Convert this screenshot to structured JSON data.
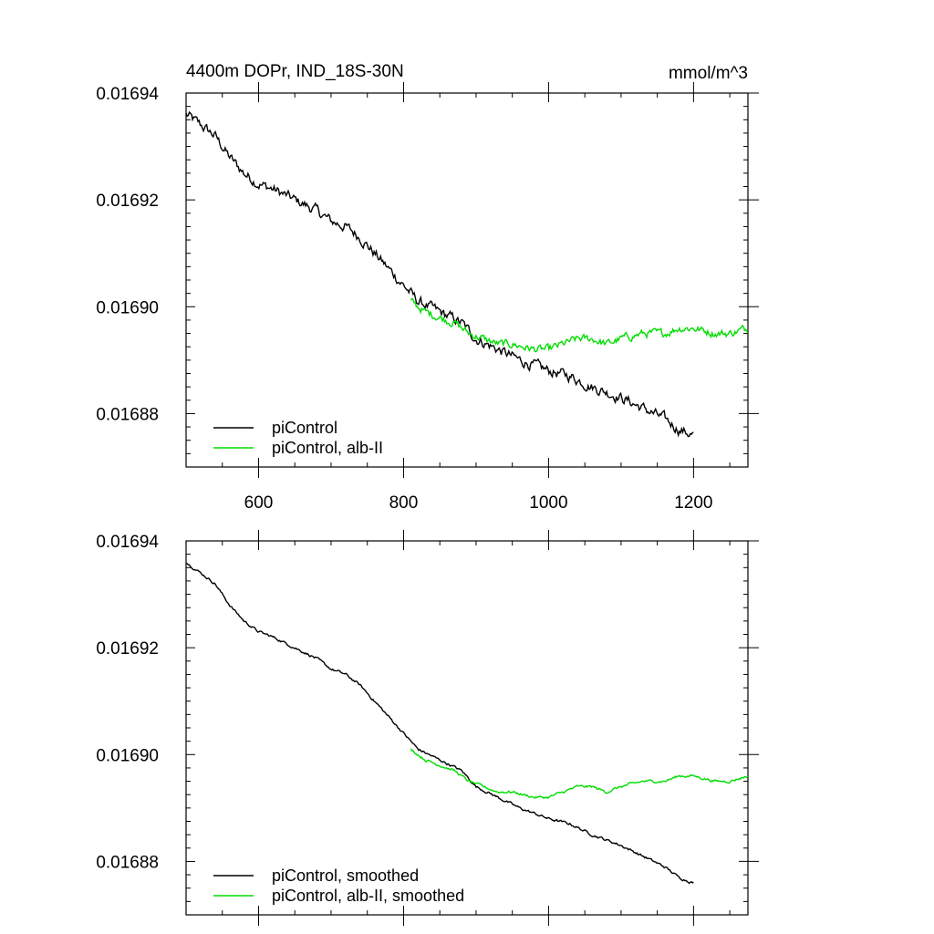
{
  "page": {
    "title": "4400m DOPr, IND_18S-30N",
    "units": "mmol/m^3"
  },
  "colors": {
    "piControl": "#000000",
    "alb": "#00dd00"
  },
  "chart_data": [
    {
      "type": "line",
      "title": "4400m DOPr, IND_18S-30N",
      "units_label": "mmol/m^3",
      "xlabel": "",
      "ylabel": "",
      "xlim": [
        500,
        1275
      ],
      "ylim": [
        0.01687,
        0.01694
      ],
      "xticks": [
        600,
        800,
        1000,
        1200
      ],
      "xtick_labels": [
        "600",
        "800",
        "1000",
        "1200"
      ],
      "yticks": [
        0.01688,
        0.0169,
        0.01692,
        0.01694
      ],
      "ytick_labels": [
        "0.01688",
        "0.01690",
        "0.01692",
        "0.01694"
      ],
      "legend_position": "bottom-left",
      "series": [
        {
          "name": "piControl",
          "color": "#000000",
          "noise": 8e-07,
          "x": [
            500,
            520,
            540,
            560,
            580,
            600,
            620,
            650,
            680,
            700,
            720,
            740,
            760,
            780,
            800,
            820,
            850,
            880,
            900,
            930,
            960,
            1000,
            1030,
            1060,
            1100,
            1130,
            1160,
            1180,
            1200
          ],
          "y": [
            0.016936,
            0.016934,
            0.016932,
            0.016928,
            0.016925,
            0.016923,
            0.016922,
            0.01692,
            0.016918,
            0.016916,
            0.016915,
            0.016913,
            0.01691,
            0.016907,
            0.016904,
            0.016901,
            0.016899,
            0.016897,
            0.016894,
            0.016892,
            0.01689,
            0.016888,
            0.016887,
            0.016885,
            0.016883,
            0.016881,
            0.016879,
            0.016877,
            0.016876
          ]
        },
        {
          "name": "piControl, alb-II",
          "color": "#00dd00",
          "noise": 6e-07,
          "x": [
            810,
            830,
            850,
            870,
            890,
            910,
            930,
            950,
            980,
            1000,
            1020,
            1040,
            1060,
            1080,
            1100,
            1130,
            1160,
            1180,
            1200,
            1230,
            1250,
            1275
          ],
          "y": [
            0.016901,
            0.016899,
            0.016898,
            0.016897,
            0.016895,
            0.016894,
            0.016893,
            0.016893,
            0.016892,
            0.016892,
            0.016893,
            0.016894,
            0.016894,
            0.016893,
            0.016894,
            0.016895,
            0.016895,
            0.016896,
            0.016896,
            0.016895,
            0.016895,
            0.016896
          ]
        }
      ]
    },
    {
      "type": "line",
      "title": "",
      "xlabel": "",
      "ylabel": "",
      "xlim": [
        500,
        1275
      ],
      "ylim": [
        0.01687,
        0.01694
      ],
      "xticks": [
        600,
        800,
        1000,
        1200
      ],
      "yticks": [
        0.01688,
        0.0169,
        0.01692,
        0.01694
      ],
      "ytick_labels": [
        "0.01688",
        "0.01690",
        "0.01692",
        "0.01694"
      ],
      "legend_position": "bottom-left",
      "series": [
        {
          "name": "piControl, smoothed",
          "color": "#000000",
          "noise": 2e-07,
          "x": [
            500,
            520,
            540,
            560,
            580,
            600,
            620,
            650,
            680,
            700,
            720,
            740,
            760,
            780,
            800,
            820,
            850,
            880,
            900,
            930,
            960,
            1000,
            1030,
            1060,
            1100,
            1130,
            1160,
            1180,
            1200
          ],
          "y": [
            0.016936,
            0.016934,
            0.016932,
            0.016928,
            0.016925,
            0.016923,
            0.016922,
            0.01692,
            0.016918,
            0.016916,
            0.016915,
            0.016913,
            0.01691,
            0.016907,
            0.016904,
            0.016901,
            0.016899,
            0.016897,
            0.016894,
            0.016892,
            0.01689,
            0.016888,
            0.016887,
            0.016885,
            0.016883,
            0.016881,
            0.016879,
            0.016877,
            0.016876
          ]
        },
        {
          "name": "piControl, alb-II, smoothed",
          "color": "#00dd00",
          "noise": 2e-07,
          "x": [
            810,
            830,
            850,
            870,
            890,
            910,
            930,
            950,
            980,
            1000,
            1020,
            1040,
            1060,
            1080,
            1100,
            1130,
            1160,
            1180,
            1200,
            1230,
            1250,
            1275
          ],
          "y": [
            0.016901,
            0.016899,
            0.016898,
            0.016897,
            0.016895,
            0.016894,
            0.016893,
            0.016893,
            0.016892,
            0.016892,
            0.016893,
            0.016894,
            0.016894,
            0.016893,
            0.016894,
            0.016895,
            0.016895,
            0.016896,
            0.016896,
            0.016895,
            0.016895,
            0.016896
          ]
        }
      ]
    }
  ]
}
